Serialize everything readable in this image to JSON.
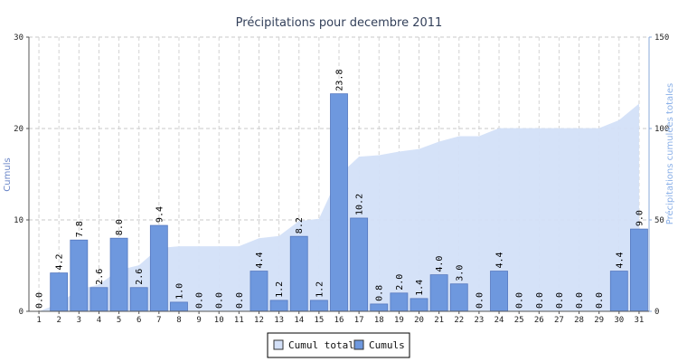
{
  "chart_data": {
    "type": "bar",
    "title": "Précipitations pour decembre 2011",
    "ylabel": "Cumuls",
    "y2label": "Précipitations cumulées totales",
    "categories": [
      "1",
      "2",
      "3",
      "4",
      "5",
      "6",
      "7",
      "8",
      "9",
      "10",
      "11",
      "12",
      "13",
      "14",
      "15",
      "16",
      "17",
      "18",
      "19",
      "20",
      "21",
      "22",
      "23",
      "24",
      "25",
      "26",
      "27",
      "28",
      "29",
      "30",
      "31"
    ],
    "series": [
      {
        "name": "Cumuls",
        "type": "bar",
        "axis": "left",
        "color": "#6e98de",
        "values": [
          0.0,
          4.2,
          7.8,
          2.6,
          8.0,
          2.6,
          9.4,
          1.0,
          0.0,
          0.0,
          0.0,
          4.4,
          1.2,
          8.2,
          1.2,
          23.8,
          10.2,
          0.8,
          2.0,
          1.4,
          4.0,
          3.0,
          0.0,
          4.4,
          0.0,
          0.0,
          0.0,
          0.0,
          0.0,
          4.4,
          9.0
        ],
        "labels": [
          "0.0",
          "4.2",
          "7.8",
          "2.6",
          "8.0",
          "2.6",
          "9.4",
          "1.0",
          "0.0",
          "0.0",
          "0.0",
          "4.4",
          "1.2",
          "8.2",
          "1.2",
          "23.8",
          "10.2",
          "0.8",
          "2.0",
          "1.4",
          "4.0",
          "3.0",
          "0.0",
          "4.4",
          "0.0",
          "0.0",
          "0.0",
          "0.0",
          "0.0",
          "4.4",
          "9.0"
        ]
      },
      {
        "name": "Cumul total",
        "type": "area",
        "axis": "right",
        "color": "#d3e0f8",
        "values": [
          0.0,
          4.2,
          12.0,
          14.6,
          22.6,
          25.2,
          34.6,
          35.6,
          35.6,
          35.6,
          35.6,
          40.0,
          41.2,
          49.4,
          50.6,
          74.4,
          84.6,
          85.4,
          87.4,
          88.8,
          92.8,
          95.8,
          95.8,
          100.2,
          100.2,
          100.2,
          100.2,
          100.2,
          100.2,
          104.6,
          113.6
        ]
      }
    ],
    "ylim": [
      0,
      30
    ],
    "y2lim": [
      0,
      150
    ],
    "yticks": [
      "0",
      "10",
      "20",
      "30"
    ],
    "y2ticks": [
      "0",
      "50",
      "100",
      "150"
    ],
    "grid": true,
    "legend_position": "bottom-center"
  }
}
